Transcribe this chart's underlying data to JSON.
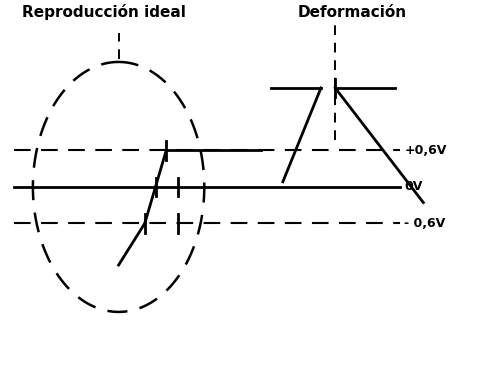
{
  "title_left": "Reproducción ideal",
  "title_right": "Deformación",
  "label_pos06": "+0,6V",
  "label_0v": "0V",
  "label_neg06": "- 0,6V",
  "bg_color": "#ffffff",
  "line_color": "#000000",
  "figsize": [
    4.88,
    3.72
  ],
  "dpi": 100
}
